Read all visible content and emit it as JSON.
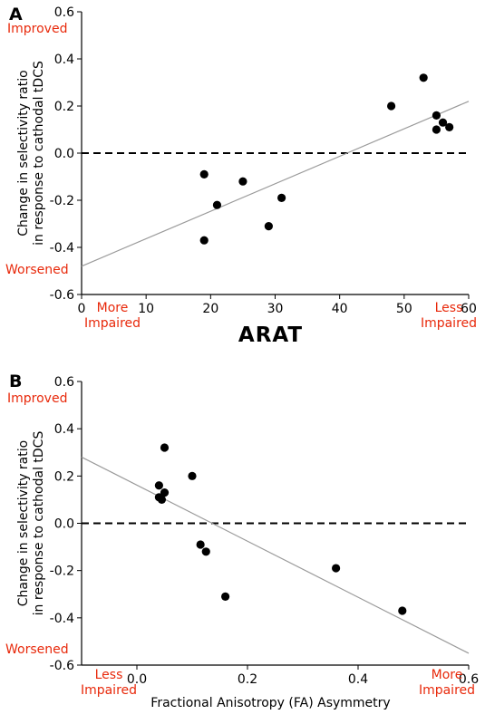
{
  "chart_data": [
    {
      "type": "scatter",
      "panel_label": "A",
      "xlabel": "ARAT",
      "ylabel_lines": [
        "Change in selectivity ratio",
        "in response to cathodal tDCS"
      ],
      "xlim": [
        0,
        60
      ],
      "ylim": [
        -0.6,
        0.6
      ],
      "xticks": [
        "0",
        "10",
        "20",
        "30",
        "40",
        "50",
        "60"
      ],
      "yticks": [
        "0.6",
        "0.4",
        "0.2",
        "0.0",
        "-0.2",
        "-0.4",
        "-0.6"
      ],
      "annotations": {
        "y_top": "Improved",
        "y_bottom": "Worsened",
        "x_left_line1": "More",
        "x_left_line2": "Impaired",
        "x_right_line1": "Less",
        "x_right_line2": "Impaired"
      },
      "points": [
        {
          "x": 19,
          "y": -0.09
        },
        {
          "x": 19,
          "y": -0.37
        },
        {
          "x": 21,
          "y": -0.22
        },
        {
          "x": 25,
          "y": -0.12
        },
        {
          "x": 29,
          "y": -0.31
        },
        {
          "x": 31,
          "y": -0.19
        },
        {
          "x": 48,
          "y": 0.2
        },
        {
          "x": 53,
          "y": 0.32
        },
        {
          "x": 55,
          "y": 0.16
        },
        {
          "x": 55,
          "y": 0.1
        },
        {
          "x": 56,
          "y": 0.13
        },
        {
          "x": 57,
          "y": 0.11
        }
      ],
      "fit_line": {
        "x0": 0,
        "y0": -0.48,
        "x1": 60,
        "y1": 0.22
      },
      "reference_line_y": 0.0
    },
    {
      "type": "scatter",
      "panel_label": "B",
      "xlabel": "Fractional Anisotropy (FA) Asymmetry",
      "ylabel_lines": [
        "Change in selectivity ratio",
        "in response to cathodal tDCS"
      ],
      "xlim": [
        -0.1,
        0.6
      ],
      "ylim": [
        -0.6,
        0.6
      ],
      "xticks": [
        "0.0",
        "0.2",
        "0.4",
        "0.6"
      ],
      "yticks": [
        "0.6",
        "0.4",
        "0.2",
        "0.0",
        "-0.2",
        "-0.4",
        "-0.6"
      ],
      "annotations": {
        "y_top": "Improved",
        "y_bottom": "Worsened",
        "x_left_line1": "Less",
        "x_left_line2": "Impaired",
        "x_right_line1": "More",
        "x_right_line2": "Impaired"
      },
      "points": [
        {
          "x": 0.04,
          "y": 0.16
        },
        {
          "x": 0.04,
          "y": 0.11
        },
        {
          "x": 0.045,
          "y": 0.1
        },
        {
          "x": 0.05,
          "y": 0.32
        },
        {
          "x": 0.05,
          "y": 0.13
        },
        {
          "x": 0.1,
          "y": 0.2
        },
        {
          "x": 0.115,
          "y": -0.09
        },
        {
          "x": 0.125,
          "y": -0.12
        },
        {
          "x": 0.16,
          "y": -0.31
        },
        {
          "x": 0.36,
          "y": -0.19
        },
        {
          "x": 0.48,
          "y": -0.37
        }
      ],
      "fit_line": {
        "x0": -0.1,
        "y0": 0.28,
        "x1": 0.6,
        "y1": -0.55
      },
      "reference_line_y": 0.0
    }
  ]
}
